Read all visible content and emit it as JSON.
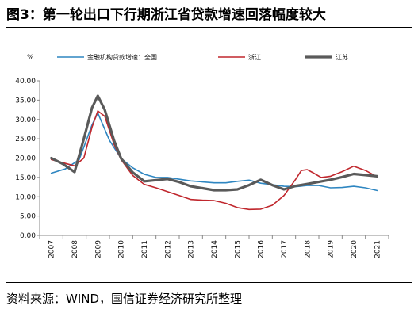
{
  "header": {
    "title": "图3：第一轮出口下行期浙江省贷款增速回落幅度较大"
  },
  "footer": {
    "source": "资料来源：WIND，国信证券经济研究所整理"
  },
  "chart_data": {
    "type": "line",
    "ylabel": "%",
    "ylim": [
      0,
      40
    ],
    "yticks": [
      "0.00",
      "5.00",
      "10.00",
      "15.00",
      "20.00",
      "25.00",
      "30.00",
      "35.00",
      "40.00"
    ],
    "categories": [
      "2007",
      "2008",
      "2009",
      "2010",
      "2011",
      "2012",
      "2013",
      "2014",
      "2015",
      "2016",
      "2017",
      "2018",
      "2019",
      "2020",
      "2021"
    ],
    "grid": false,
    "legend_position": "top",
    "series": [
      {
        "name": "金融机构贷款增速：全国",
        "color": "#2e86c1",
        "stroke_width": 1.6,
        "points": [
          [
            0,
            16.1
          ],
          [
            0.6,
            17.2
          ],
          [
            1.2,
            19.6
          ],
          [
            1.75,
            28.6
          ],
          [
            2.0,
            31.7
          ],
          [
            2.5,
            24.6
          ],
          [
            3.0,
            19.9
          ],
          [
            3.5,
            17.5
          ],
          [
            4.0,
            15.8
          ],
          [
            4.5,
            15.0
          ],
          [
            5.0,
            15.0
          ],
          [
            6.0,
            14.1
          ],
          [
            7.0,
            13.6
          ],
          [
            7.5,
            13.6
          ],
          [
            8.0,
            14.0
          ],
          [
            8.5,
            14.3
          ],
          [
            9.0,
            13.5
          ],
          [
            9.5,
            13.1
          ],
          [
            10.0,
            12.7
          ],
          [
            10.5,
            12.6
          ],
          [
            11.0,
            12.9
          ],
          [
            11.5,
            12.9
          ],
          [
            12.0,
            12.3
          ],
          [
            12.5,
            12.4
          ],
          [
            13.0,
            12.7
          ],
          [
            13.5,
            12.3
          ],
          [
            14.0,
            11.6
          ]
        ]
      },
      {
        "name": "浙江",
        "color": "#c0272d",
        "stroke_width": 1.6,
        "points": [
          [
            0,
            19.6
          ],
          [
            0.5,
            18.8
          ],
          [
            1.0,
            18.0
          ],
          [
            1.4,
            20.0
          ],
          [
            1.75,
            28.0
          ],
          [
            2.0,
            32.2
          ],
          [
            2.3,
            30.8
          ],
          [
            2.7,
            23.5
          ],
          [
            3.0,
            19.6
          ],
          [
            3.5,
            15.5
          ],
          [
            4.0,
            13.2
          ],
          [
            4.5,
            12.3
          ],
          [
            5.0,
            11.3
          ],
          [
            5.5,
            10.3
          ],
          [
            6.0,
            9.3
          ],
          [
            6.5,
            9.1
          ],
          [
            7.0,
            9.0
          ],
          [
            7.5,
            8.3
          ],
          [
            8.0,
            7.2
          ],
          [
            8.5,
            6.7
          ],
          [
            9.0,
            6.8
          ],
          [
            9.5,
            7.8
          ],
          [
            10.0,
            10.3
          ],
          [
            10.5,
            14.5
          ],
          [
            10.75,
            16.8
          ],
          [
            11.0,
            17.0
          ],
          [
            11.25,
            16.2
          ],
          [
            11.6,
            15.0
          ],
          [
            12.0,
            15.3
          ],
          [
            12.5,
            16.5
          ],
          [
            13.0,
            17.9
          ],
          [
            13.5,
            16.8
          ],
          [
            14.0,
            15.2
          ]
        ]
      },
      {
        "name": "江苏",
        "color": "#5a5a5a",
        "stroke_width": 3.2,
        "points": [
          [
            0,
            20.0
          ],
          [
            0.5,
            18.5
          ],
          [
            1.0,
            16.4
          ],
          [
            1.4,
            25.0
          ],
          [
            1.75,
            33.0
          ],
          [
            2.0,
            36.1
          ],
          [
            2.3,
            32.5
          ],
          [
            2.7,
            24.5
          ],
          [
            3.0,
            19.9
          ],
          [
            3.5,
            16.3
          ],
          [
            4.0,
            14.0
          ],
          [
            4.5,
            14.3
          ],
          [
            5.0,
            14.6
          ],
          [
            5.5,
            13.8
          ],
          [
            6.0,
            12.7
          ],
          [
            6.5,
            12.2
          ],
          [
            7.0,
            11.7
          ],
          [
            7.5,
            11.7
          ],
          [
            8.0,
            11.9
          ],
          [
            8.5,
            13.0
          ],
          [
            9.0,
            14.4
          ],
          [
            9.5,
            13.0
          ],
          [
            10.0,
            11.9
          ],
          [
            10.5,
            12.8
          ],
          [
            11.0,
            13.3
          ],
          [
            12.0,
            14.4
          ],
          [
            12.5,
            15.1
          ],
          [
            13.0,
            15.9
          ],
          [
            13.5,
            15.6
          ],
          [
            14.0,
            15.3
          ]
        ]
      }
    ]
  }
}
